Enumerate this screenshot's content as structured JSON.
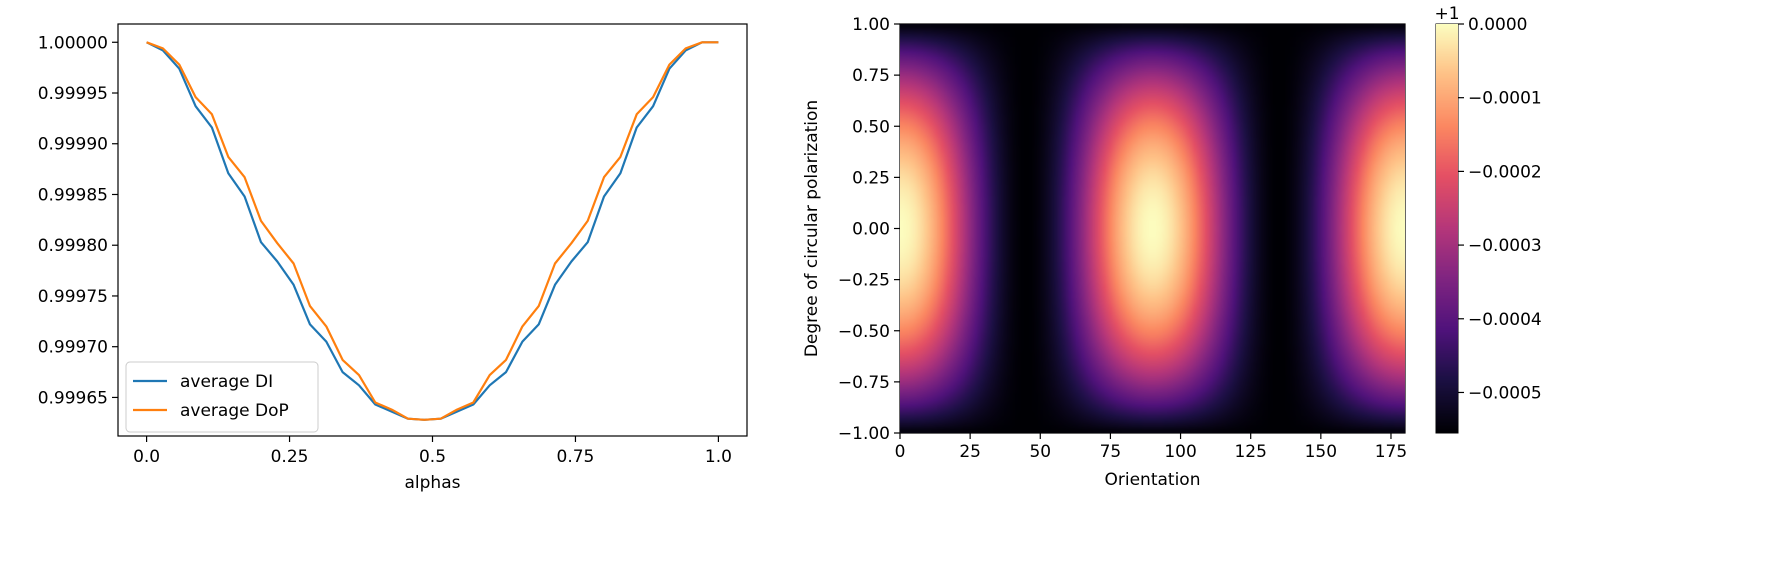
{
  "chart_data": [
    {
      "type": "line",
      "title": "",
      "xlabel": "alphas",
      "ylabel": "",
      "xlim": [
        -0.05,
        1.05
      ],
      "ylim": [
        0.999612,
        1.000018
      ],
      "xticks": [
        0.0,
        0.25,
        0.5,
        0.75,
        1.0
      ],
      "xtick_labels": [
        "0.0",
        "0.25",
        "0.5",
        "0.75",
        "1.0"
      ],
      "yticks": [
        1.0,
        0.99995,
        0.9999,
        0.99985,
        0.9998,
        0.99975,
        0.9997,
        0.99965
      ],
      "ytick_labels": [
        "1.00000",
        "0.99995",
        "0.99990",
        "0.99985",
        "0.99980",
        "0.99975",
        "0.99970",
        "0.99965"
      ],
      "legend_position": "lower-left",
      "x_count": 36,
      "series": [
        {
          "name": "average DI",
          "color": "#1f77b4",
          "values": [
            1.0,
            0.999992,
            0.999974,
            0.999937,
            0.999916,
            0.999871,
            0.999848,
            0.999803,
            0.999784,
            0.999761,
            0.999722,
            0.999705,
            0.999675,
            0.999662,
            0.999643,
            0.999636,
            0.999629,
            0.999628,
            0.999629,
            0.999636,
            0.999643,
            0.999662,
            0.999675,
            0.999705,
            0.999722,
            0.999761,
            0.999784,
            0.999803,
            0.999848,
            0.999871,
            0.999916,
            0.999937,
            0.999974,
            0.999992,
            1.0,
            1.0
          ]
        },
        {
          "name": "average DoP",
          "color": "#ff7f0e",
          "values": [
            1.0,
            0.999994,
            0.999978,
            0.999946,
            0.999929,
            0.999887,
            0.999867,
            0.999824,
            0.999802,
            0.999782,
            0.99974,
            0.99972,
            0.999687,
            0.999672,
            0.999645,
            0.999638,
            0.999629,
            0.999628,
            0.999629,
            0.999638,
            0.999645,
            0.999672,
            0.999687,
            0.99972,
            0.99974,
            0.999782,
            0.999802,
            0.999824,
            0.999867,
            0.999887,
            0.999929,
            0.999946,
            0.999978,
            0.999994,
            1.0,
            1.0
          ]
        }
      ]
    },
    {
      "type": "heatmap",
      "title": "",
      "xlabel": "Orientation",
      "ylabel": "Degree of circular polarization",
      "xlim": [
        0,
        180
      ],
      "ylim": [
        -1.0,
        1.0
      ],
      "xticks": [
        0,
        25,
        50,
        75,
        100,
        125,
        150,
        175
      ],
      "xtick_labels": [
        "0",
        "25",
        "50",
        "75",
        "100",
        "125",
        "150",
        "175"
      ],
      "yticks": [
        1.0,
        0.75,
        0.5,
        0.25,
        0.0,
        -0.25,
        -0.5,
        -0.75,
        -1.0
      ],
      "ytick_labels": [
        "1.00",
        "0.75",
        "0.50",
        "0.25",
        "0.00",
        "−0.25",
        "−0.50",
        "−0.75",
        "−1.00"
      ],
      "colormap": "magma",
      "model": "value = 1 - depth * (1 - cos^2(2*orientation) * (1 - dcp^2))",
      "depth": 0.000555,
      "grid_cols": 90,
      "grid_rows": 80,
      "colorbar": {
        "offset_label": "+1",
        "vmin": -0.000555,
        "vmax": 0.0,
        "ticks": [
          0.0,
          -0.0001,
          -0.0002,
          -0.0003,
          -0.0004,
          -0.0005
        ],
        "tick_labels": [
          "0.0000",
          "−0.0001",
          "−0.0002",
          "−0.0003",
          "−0.0004",
          "−0.0005"
        ]
      }
    }
  ]
}
